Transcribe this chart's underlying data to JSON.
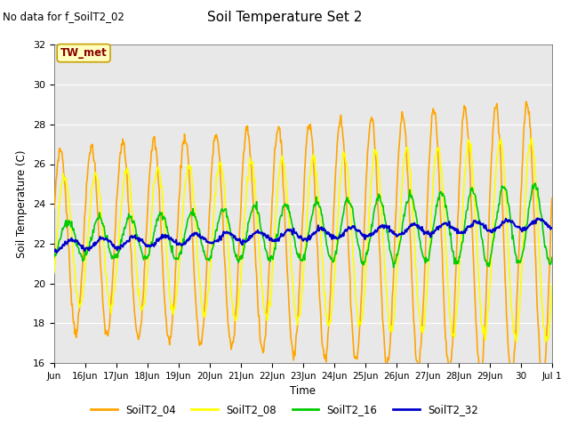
{
  "title": "Soil Temperature Set 2",
  "xlabel": "Time",
  "ylabel": "Soil Temperature (C)",
  "ylim": [
    16,
    32
  ],
  "background_color": "#e8e8e8",
  "fig_background": "#ffffff",
  "annotation_text": "No data for f_SoilT2_02",
  "twmet_label": "TW_met",
  "twmet_color": "#8b0000",
  "twmet_box_color": "#ffffc0",
  "twmet_box_edge": "#c8a000",
  "line_colors": {
    "SoilT2_04": "#ffa500",
    "SoilT2_08": "#ffff00",
    "SoilT2_16": "#00cc00",
    "SoilT2_32": "#0000cd"
  },
  "line_widths": {
    "SoilT2_04": 1.2,
    "SoilT2_08": 1.2,
    "SoilT2_16": 1.2,
    "SoilT2_32": 1.5
  },
  "xtick_labels": [
    "Jun",
    "16Jun",
    "17Jun",
    "18Jun",
    "19Jun",
    "20Jun",
    "21Jun",
    "22Jun",
    "23Jun",
    "24Jun",
    "25Jun",
    "26Jun",
    "27Jun",
    "28Jun",
    "29Jun",
    "30",
    "Jul 1"
  ],
  "ytick_values": [
    16,
    18,
    20,
    22,
    24,
    26,
    28,
    30,
    32
  ]
}
